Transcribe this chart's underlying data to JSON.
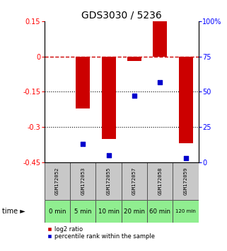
{
  "title": "GDS3030 / 5236",
  "samples": [
    "GSM172052",
    "GSM172053",
    "GSM172055",
    "GSM172057",
    "GSM172058",
    "GSM172059"
  ],
  "times": [
    "0 min",
    "5 min",
    "10 min",
    "20 min",
    "60 min",
    "120 min"
  ],
  "log2_ratio": [
    0.0,
    -0.22,
    -0.35,
    -0.02,
    0.15,
    -0.37
  ],
  "percentile_rank": [
    null,
    13,
    5,
    47,
    57,
    3
  ],
  "ylim_left": [
    -0.45,
    0.15
  ],
  "ylim_right": [
    0,
    100
  ],
  "yticks_left": [
    0.15,
    0,
    -0.15,
    -0.3,
    -0.45
  ],
  "yticks_right": [
    100,
    75,
    50,
    25,
    0
  ],
  "bar_color": "#cc0000",
  "scatter_color": "#0000cc",
  "bar_width": 0.55,
  "time_row_color": "#90ee90",
  "sample_row_color": "#c8c8c8",
  "legend_bar_label": "log2 ratio",
  "legend_scatter_label": "percentile rank within the sample",
  "title_fontsize": 10,
  "tick_fontsize": 7
}
